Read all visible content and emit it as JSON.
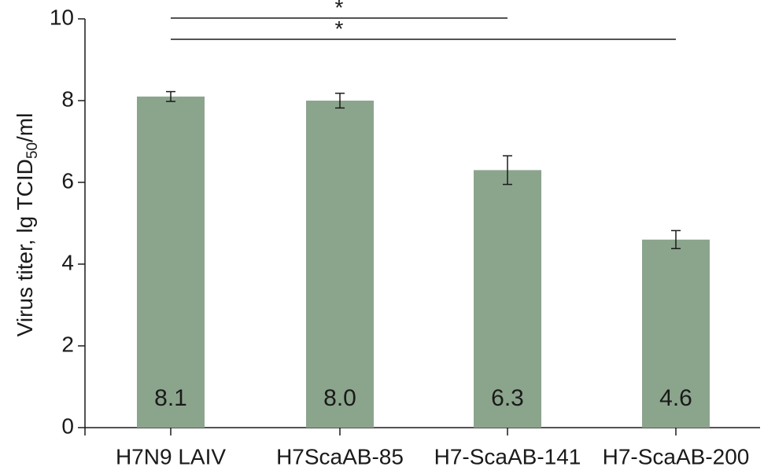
{
  "chart_data": {
    "type": "bar",
    "categories": [
      "H7N9 LAIV",
      "H7ScaAB-85",
      "H7-ScaAB-141",
      "H7-ScaAB-200"
    ],
    "values": [
      8.1,
      8.0,
      6.3,
      4.6
    ],
    "value_labels": [
      "8.1",
      "8.0",
      "6.3",
      "4.6"
    ],
    "error": [
      0.12,
      0.18,
      0.35,
      0.22
    ],
    "ylabel": {
      "main": "Virus titer, lg TCID",
      "sub": "50",
      "suffix": "/ml"
    },
    "xlabel": "",
    "title": "",
    "ylim": [
      0,
      10
    ],
    "yticks": [
      0,
      2,
      4,
      6,
      8,
      10
    ],
    "ytick_labels": [
      "0",
      "2",
      "4",
      "6",
      "8",
      "10"
    ],
    "significance": [
      {
        "from": 0,
        "to": 2,
        "label": "*"
      },
      {
        "from": 0,
        "to": 3,
        "label": "*"
      }
    ],
    "bar_color": "#8ba58d",
    "axis_color": "#1a1a1a",
    "grid": false,
    "legend": "none"
  }
}
